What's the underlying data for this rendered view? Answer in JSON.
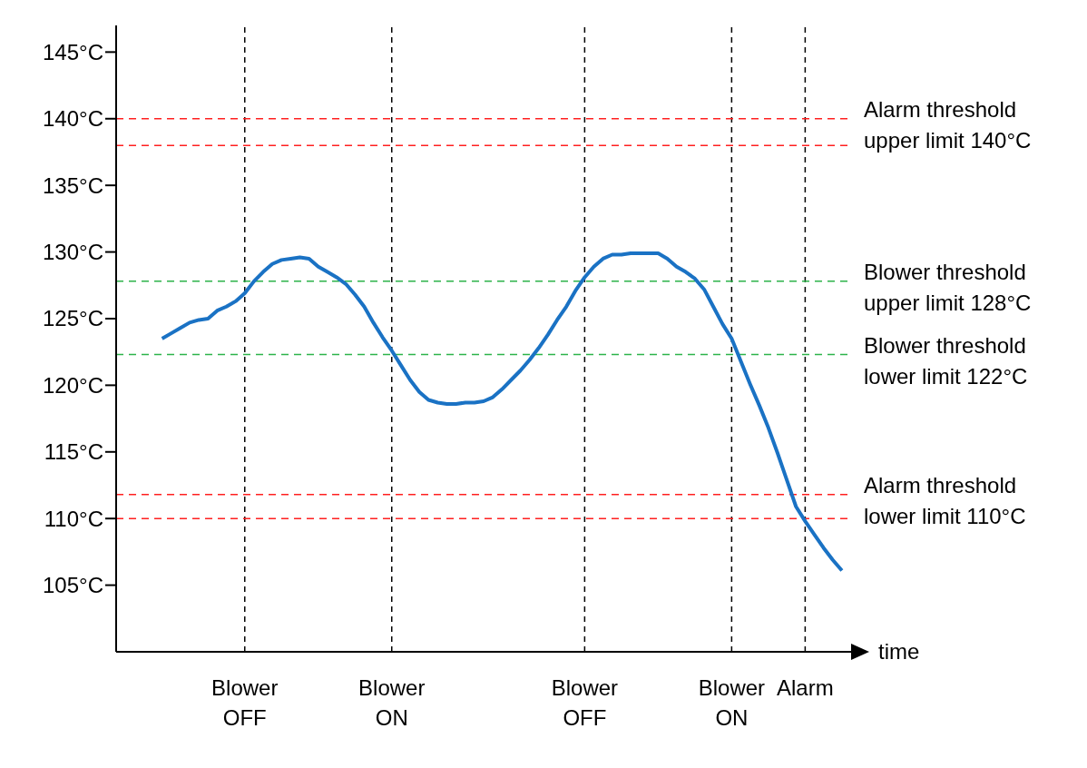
{
  "chart_data": {
    "type": "line",
    "xlabel": "time",
    "categories": [
      null,
      null,
      null,
      null,
      null,
      null,
      null,
      null,
      null,
      null,
      null,
      null,
      null,
      null,
      "Blower OFF",
      null,
      null,
      null,
      null,
      null,
      null,
      null,
      null,
      null,
      null,
      null,
      null,
      null,
      null,
      null,
      "Blower ON",
      null,
      null,
      null,
      null,
      null,
      null,
      null,
      null,
      null,
      null,
      null,
      null,
      null,
      null,
      null,
      null,
      null,
      null,
      null,
      null,
      "Blower OFF",
      null,
      null,
      null,
      null,
      null,
      null,
      null,
      null,
      null,
      null,
      null,
      null,
      null,
      null,
      null,
      "Blower ON",
      null,
      null,
      null,
      null,
      null,
      null,
      null,
      "Alarm",
      null,
      null,
      null,
      null,
      null
    ],
    "series": [
      {
        "color": "#1a72c4",
        "values": [
          null,
          null,
          null,
          null,
          null,
          123.5,
          123.9,
          124.3,
          124.7,
          124.9,
          125.0,
          125.6,
          125.9,
          126.3,
          126.9,
          127.8,
          128.5,
          129.1,
          129.4,
          129.5,
          129.6,
          129.5,
          128.9,
          128.5,
          128.1,
          127.6,
          126.8,
          125.9,
          124.7,
          123.6,
          122.6,
          121.5,
          120.4,
          119.5,
          118.9,
          118.7,
          118.6,
          118.6,
          118.7,
          118.7,
          118.8,
          119.1,
          119.7,
          120.4,
          121.1,
          121.9,
          122.8,
          123.8,
          124.9,
          125.9,
          127.1,
          128.1,
          128.9,
          129.5,
          129.8,
          129.8,
          129.9,
          129.9,
          129.9,
          129.9,
          129.5,
          128.9,
          128.5,
          128.0,
          127.2,
          125.9,
          124.6,
          123.5,
          121.8,
          120.1,
          118.5,
          116.8,
          114.9,
          112.9,
          110.9,
          109.8,
          108.8,
          107.8,
          106.9,
          106.1,
          null
        ]
      }
    ],
    "ylim": [
      100,
      147
    ],
    "yticks": [
      {
        "value": 105,
        "label": "105°C"
      },
      {
        "value": 110,
        "label": "110°C"
      },
      {
        "value": 115,
        "label": "115°C"
      },
      {
        "value": 120,
        "label": "120°C"
      },
      {
        "value": 125,
        "label": "125°C"
      },
      {
        "value": 130,
        "label": "130°C"
      },
      {
        "value": 135,
        "label": "135°C"
      },
      {
        "value": 140,
        "label": "140°C"
      },
      {
        "value": 145,
        "label": "145°C"
      }
    ],
    "ref_lines": [
      {
        "axis": "y",
        "value": 140,
        "label": "Alarm threshold upper limit 140°C",
        "color": "#ff2020",
        "line_style": "dashed"
      },
      {
        "axis": "y",
        "value": 138,
        "color": "#ff2020",
        "line_style": "dashed"
      },
      {
        "axis": "y",
        "value": 127.8,
        "label": "Blower threshold upper limit 128°C",
        "color": "#2db34a",
        "line_style": "dashed"
      },
      {
        "axis": "y",
        "value": 122.3,
        "label": "Blower threshold lower limit 122°C",
        "color": "#2db34a",
        "line_style": "dashed"
      },
      {
        "axis": "y",
        "value": 111.8,
        "label": "Alarm threshold lower limit 110°C",
        "color": "#ff2020",
        "line_style": "dashed"
      },
      {
        "axis": "y",
        "value": 110,
        "color": "#ff2020",
        "line_style": "dashed"
      }
    ],
    "grid": "x",
    "marker": "none",
    "line_style": "solid"
  }
}
